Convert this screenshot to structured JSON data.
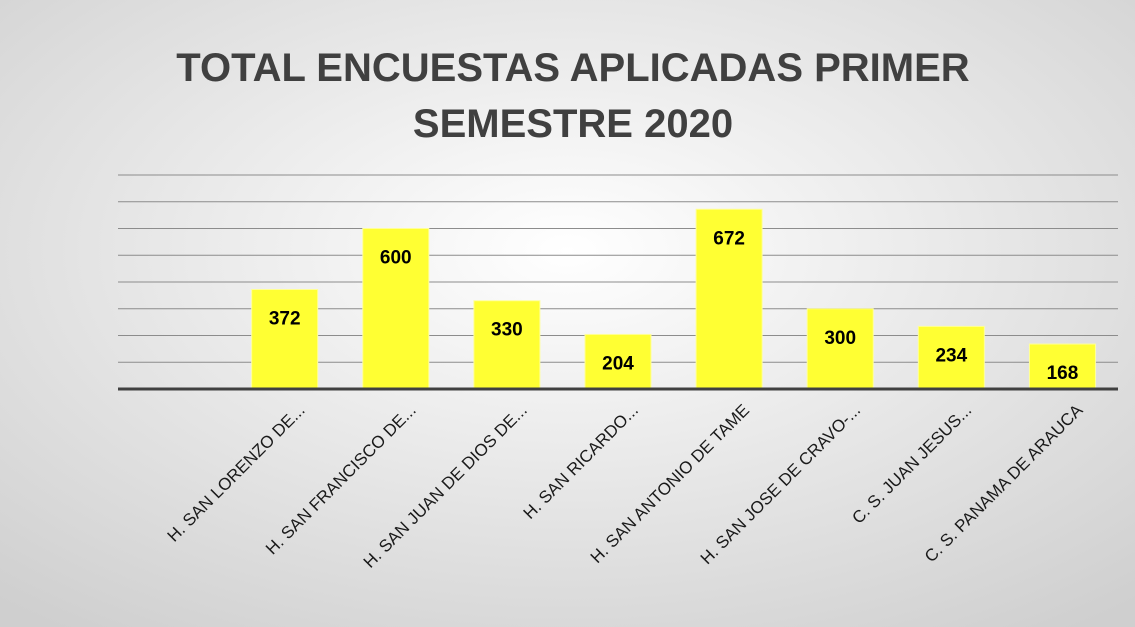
{
  "chart_data": {
    "type": "bar",
    "title": "TOTAL ENCUESTAS APLICADAS PRIMER SEMESTRE 2020",
    "categories": [
      null,
      "H. SAN LORENZO DE...",
      "H. SAN FRANCISCO DE...",
      "H. SAN JUAN DE DIOS DE...",
      "H.  SAN RICARDO...",
      "H. SAN ANTONIO DE TAME",
      "H.  SAN JOSE DE CRAVO-...",
      "C. S. JUAN JESUS...",
      "C. S. PANAMA DE ARAUCA"
    ],
    "values": [
      null,
      372,
      600,
      330,
      204,
      672,
      300,
      234,
      168
    ],
    "color": "#ffff33",
    "ylim": [
      0,
      800
    ],
    "yticks": [
      100,
      200,
      300,
      400,
      500,
      600,
      700,
      800
    ],
    "grid": true
  }
}
